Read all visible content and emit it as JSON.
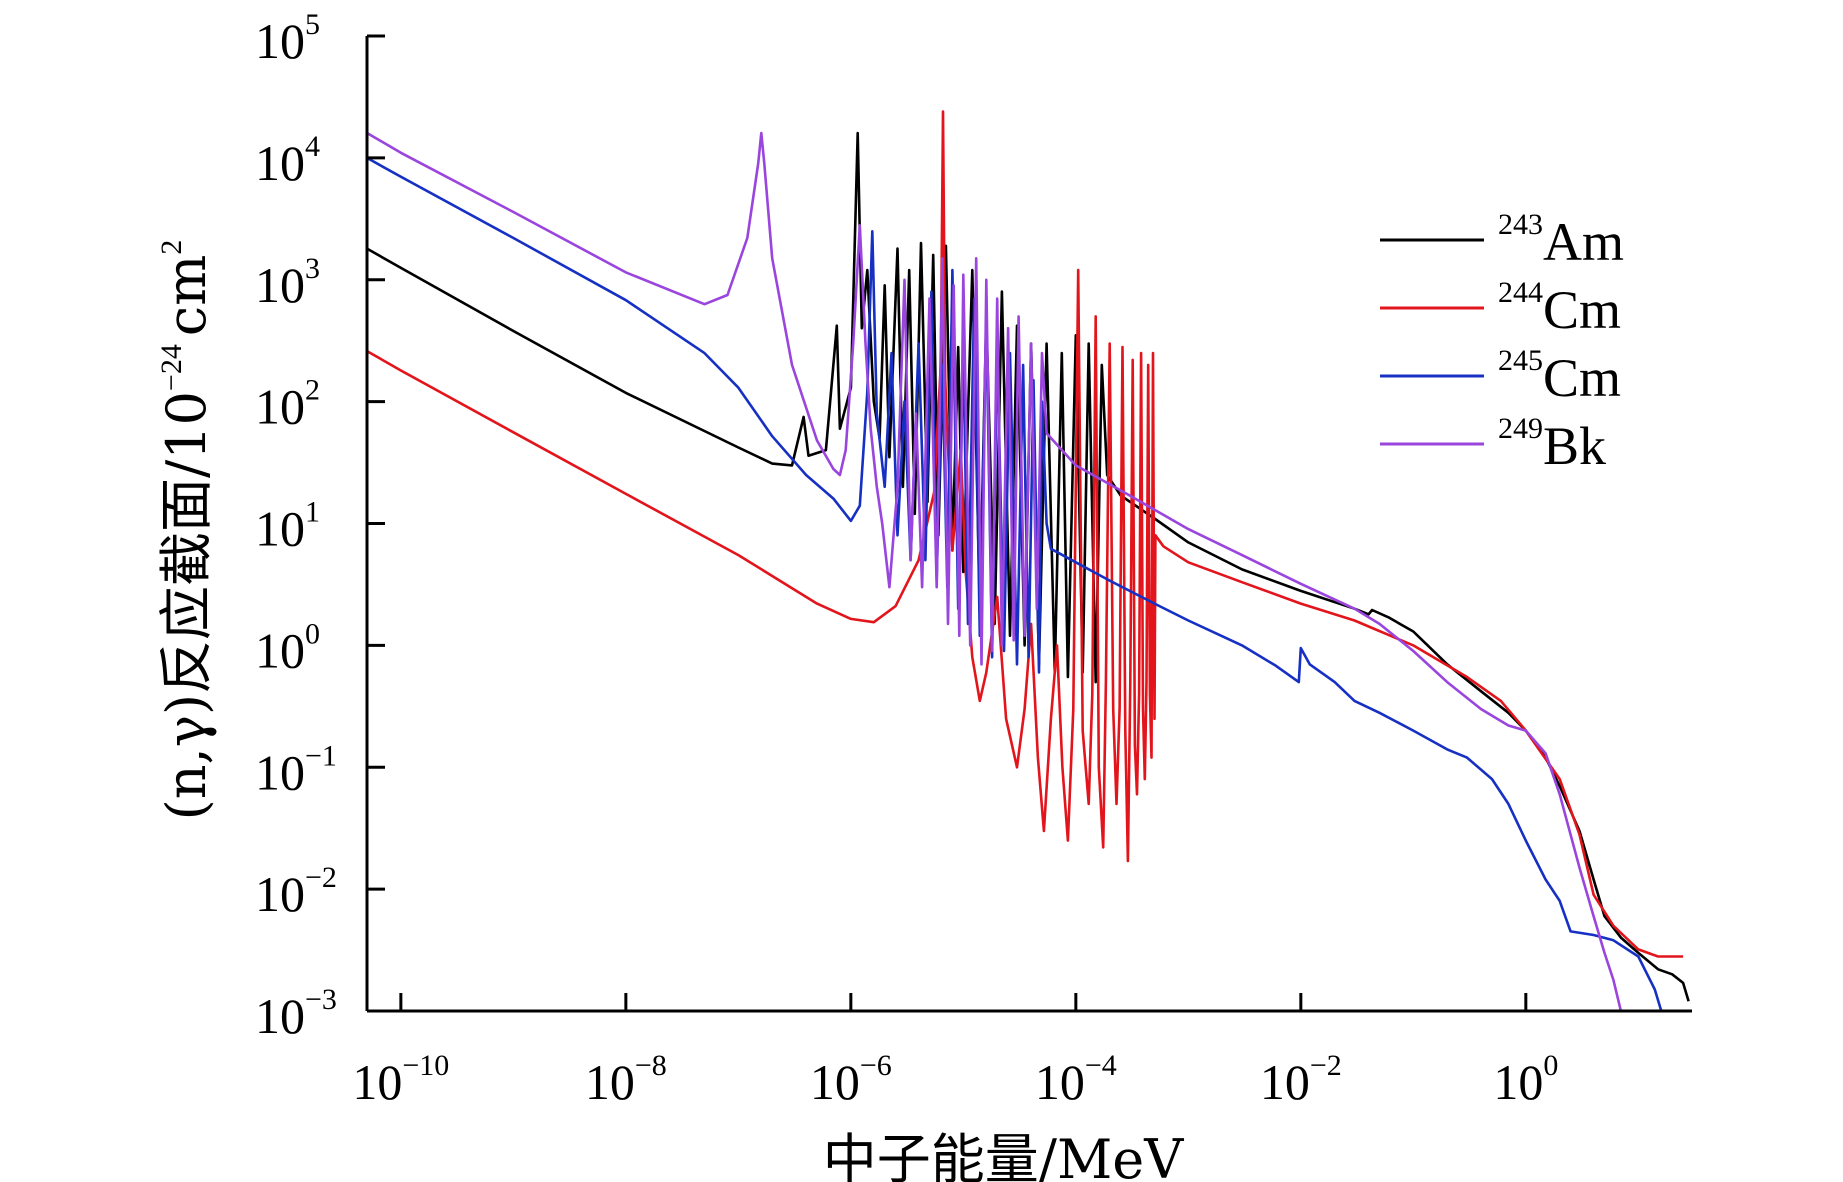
{
  "chart_data": {
    "type": "line",
    "xscale": "log",
    "yscale": "log",
    "xlabel": "中子能量/MeV",
    "ylabel": "(n,γ)反应截面/10",
    "ylabel_exp": "−24",
    "ylabel_unit": "cm",
    "ylabel_unit_exp": "2",
    "xlim": [
      5e-11,
      30
    ],
    "ylim": [
      0.001,
      100000
    ],
    "x_ticks": [
      {
        "base": "10",
        "exp": "−10",
        "value": 1e-10
      },
      {
        "base": "10",
        "exp": "−8",
        "value": 1e-08
      },
      {
        "base": "10",
        "exp": "−6",
        "value": 1e-06
      },
      {
        "base": "10",
        "exp": "−4",
        "value": 0.0001
      },
      {
        "base": "10",
        "exp": "−2",
        "value": 0.01
      },
      {
        "base": "10",
        "exp": "0",
        "value": 1
      }
    ],
    "y_ticks": [
      {
        "base": "10",
        "exp": "5",
        "value": 100000
      },
      {
        "base": "10",
        "exp": "4",
        "value": 10000
      },
      {
        "base": "10",
        "exp": "3",
        "value": 1000
      },
      {
        "base": "10",
        "exp": "2",
        "value": 100
      },
      {
        "base": "10",
        "exp": "1",
        "value": 10
      },
      {
        "base": "10",
        "exp": "0",
        "value": 1
      },
      {
        "base": "10",
        "exp": "−1",
        "value": 0.1
      },
      {
        "base": "10",
        "exp": "−2",
        "value": 0.01
      },
      {
        "base": "10",
        "exp": "−3",
        "value": 0.001
      }
    ],
    "legend_position": "right",
    "series": [
      {
        "name": "Am",
        "mass": "243",
        "color": "#000000",
        "points": [
          [
            5e-11,
            1800
          ],
          [
            1e-10,
            1250
          ],
          [
            1e-09,
            380
          ],
          [
            1e-08,
            118
          ],
          [
            1e-07,
            42
          ],
          [
            2e-07,
            31
          ],
          [
            3e-07,
            30
          ],
          [
            3.8e-07,
            75
          ],
          [
            4.2e-07,
            36
          ],
          [
            6e-07,
            40
          ],
          [
            7.5e-07,
            420
          ],
          [
            8e-07,
            60
          ],
          [
            1e-06,
            130
          ],
          [
            1.15e-06,
            16000
          ],
          [
            1.25e-06,
            400
          ],
          [
            1.4e-06,
            1200
          ],
          [
            1.6e-06,
            100
          ],
          [
            1.8e-06,
            50
          ],
          [
            2e-06,
            900
          ],
          [
            2.2e-06,
            35
          ],
          [
            2.6e-06,
            1800
          ],
          [
            2.9e-06,
            20
          ],
          [
            3.3e-06,
            1200
          ],
          [
            3.7e-06,
            12
          ],
          [
            4.2e-06,
            2000
          ],
          [
            4.8e-06,
            15
          ],
          [
            5.4e-06,
            1600
          ],
          [
            6e-06,
            8
          ],
          [
            7e-06,
            1900
          ],
          [
            8e-06,
            6
          ],
          [
            9e-06,
            280
          ],
          [
            1e-05,
            4
          ],
          [
            1.2e-05,
            1200
          ],
          [
            1.4e-05,
            2
          ],
          [
            1.6e-05,
            500
          ],
          [
            1.9e-05,
            1.5
          ],
          [
            2.2e-05,
            800
          ],
          [
            2.6e-05,
            1.2
          ],
          [
            3e-05,
            420
          ],
          [
            3.5e-05,
            1
          ],
          [
            4e-05,
            300
          ],
          [
            4.7e-05,
            0.7
          ],
          [
            5.5e-05,
            300
          ],
          [
            6.5e-05,
            0.6
          ],
          [
            7.5e-05,
            250
          ],
          [
            8.5e-05,
            0.55
          ],
          [
            0.0001,
            350
          ],
          [
            0.000115,
            0.6
          ],
          [
            0.00013,
            300
          ],
          [
            0.00015,
            0.5
          ],
          [
            0.00017,
            200
          ],
          [
            0.00019,
            25
          ],
          [
            0.00025,
            17
          ],
          [
            0.0005,
            11
          ],
          [
            0.001,
            7
          ],
          [
            0.003,
            4.2
          ],
          [
            0.01,
            2.8
          ],
          [
            0.03,
            2
          ],
          [
            0.04,
            1.8
          ],
          [
            0.043,
            1.95
          ],
          [
            0.06,
            1.7
          ],
          [
            0.1,
            1.3
          ],
          [
            0.2,
            0.7
          ],
          [
            0.4,
            0.42
          ],
          [
            0.7,
            0.28
          ],
          [
            1,
            0.2
          ],
          [
            1.5,
            0.12
          ],
          [
            2,
            0.07
          ],
          [
            3,
            0.03
          ],
          [
            4,
            0.012
          ],
          [
            5,
            0.006
          ],
          [
            7,
            0.004
          ],
          [
            10,
            0.003
          ],
          [
            15,
            0.0022
          ],
          [
            20,
            0.002
          ],
          [
            25,
            0.0017
          ],
          [
            28,
            0.0012
          ]
        ]
      },
      {
        "name": "Cm",
        "mass": "244",
        "color": "#e2151c",
        "points": [
          [
            5e-11,
            260
          ],
          [
            1e-10,
            180
          ],
          [
            1e-09,
            56
          ],
          [
            1e-08,
            17.5
          ],
          [
            1e-07,
            5.5
          ],
          [
            5e-07,
            2.2
          ],
          [
            1e-06,
            1.65
          ],
          [
            1.6e-06,
            1.55
          ],
          [
            2.5e-06,
            2.1
          ],
          [
            4e-06,
            5
          ],
          [
            5.5e-06,
            18
          ],
          [
            6.3e-06,
            200
          ],
          [
            6.6e-06,
            24000
          ],
          [
            6.9e-06,
            150
          ],
          [
            8e-06,
            6
          ],
          [
            9.5e-06,
            40
          ],
          [
            1.05e-05,
            4
          ],
          [
            1.2e-05,
            0.8
          ],
          [
            1.4e-05,
            0.35
          ],
          [
            1.6e-05,
            0.6
          ],
          [
            2e-05,
            2.5
          ],
          [
            2.4e-05,
            0.25
          ],
          [
            3e-05,
            0.1
          ],
          [
            3.5e-05,
            0.3
          ],
          [
            4e-05,
            1.5
          ],
          [
            4.6e-05,
            0.12
          ],
          [
            5.2e-05,
            0.03
          ],
          [
            6e-05,
            0.25
          ],
          [
            6.8e-05,
            1
          ],
          [
            7.6e-05,
            0.1
          ],
          [
            8.5e-05,
            0.025
          ],
          [
            9.5e-05,
            0.3
          ],
          [
            0.000105,
            1200
          ],
          [
            0.000115,
            0.2
          ],
          [
            0.00013,
            0.05
          ],
          [
            0.00014,
            0.4
          ],
          [
            0.00015,
            500
          ],
          [
            0.00016,
            0.1
          ],
          [
            0.000175,
            0.022
          ],
          [
            0.000185,
            0.5
          ],
          [
            0.0002,
            300
          ],
          [
            0.000215,
            0.3
          ],
          [
            0.00023,
            0.05
          ],
          [
            0.000245,
            0.3
          ],
          [
            0.00026,
            280
          ],
          [
            0.000275,
            0.2
          ],
          [
            0.00029,
            0.017
          ],
          [
            0.000305,
            0.5
          ],
          [
            0.00032,
            220
          ],
          [
            0.000335,
            0.15
          ],
          [
            0.00035,
            0.06
          ],
          [
            0.000365,
            0.4
          ],
          [
            0.00038,
            250
          ],
          [
            0.000395,
            0.3
          ],
          [
            0.00041,
            0.08
          ],
          [
            0.000425,
            0.5
          ],
          [
            0.00044,
            200
          ],
          [
            0.000455,
            0.4
          ],
          [
            0.00047,
            0.12
          ],
          [
            0.000485,
            250
          ],
          [
            0.0005,
            0.25
          ],
          [
            0.00051,
            8
          ],
          [
            0.0006,
            6.5
          ],
          [
            0.001,
            4.8
          ],
          [
            0.003,
            3.3
          ],
          [
            0.01,
            2.2
          ],
          [
            0.03,
            1.6
          ],
          [
            0.1,
            1
          ],
          [
            0.3,
            0.55
          ],
          [
            0.6,
            0.35
          ],
          [
            1,
            0.2
          ],
          [
            2,
            0.08
          ],
          [
            3,
            0.028
          ],
          [
            4,
            0.009
          ],
          [
            6,
            0.005
          ],
          [
            10,
            0.0032
          ],
          [
            15,
            0.0028
          ],
          [
            25,
            0.0028
          ]
        ]
      },
      {
        "name": "Cm",
        "mass": "245",
        "color": "#1730c4",
        "points": [
          [
            5e-11,
            10000
          ],
          [
            1e-10,
            7000
          ],
          [
            1e-09,
            2200
          ],
          [
            1e-08,
            680
          ],
          [
            5e-08,
            250
          ],
          [
            1e-07,
            130
          ],
          [
            2e-07,
            52
          ],
          [
            4e-07,
            25
          ],
          [
            7e-07,
            16
          ],
          [
            1e-06,
            10.5
          ],
          [
            1.2e-06,
            14
          ],
          [
            1.4e-06,
            120
          ],
          [
            1.55e-06,
            2500
          ],
          [
            1.7e-06,
            80
          ],
          [
            2e-06,
            20
          ],
          [
            2.3e-06,
            250
          ],
          [
            2.6e-06,
            8
          ],
          [
            3e-06,
            100
          ],
          [
            3.4e-06,
            5
          ],
          [
            4e-06,
            300
          ],
          [
            4.6e-06,
            5
          ],
          [
            5.2e-06,
            800
          ],
          [
            5.8e-06,
            3.5
          ],
          [
            6.5e-06,
            200
          ],
          [
            7.2e-06,
            3
          ],
          [
            8e-06,
            1200
          ],
          [
            9e-06,
            2
          ],
          [
            1e-05,
            300
          ],
          [
            1.1e-05,
            1.5
          ],
          [
            1.25e-05,
            700
          ],
          [
            1.4e-05,
            1.2
          ],
          [
            1.6e-05,
            500
          ],
          [
            1.8e-05,
            0.8
          ],
          [
            2e-05,
            300
          ],
          [
            2.3e-05,
            0.9
          ],
          [
            2.6e-05,
            250
          ],
          [
            3e-05,
            0.7
          ],
          [
            3.4e-05,
            200
          ],
          [
            3.8e-05,
            0.8
          ],
          [
            4.2e-05,
            150
          ],
          [
            4.7e-05,
            0.6
          ],
          [
            5e-05,
            100
          ],
          [
            5.5e-05,
            10
          ],
          [
            6e-05,
            6.2
          ],
          [
            0.0001,
            4.8
          ],
          [
            0.0002,
            3.4
          ],
          [
            0.0005,
            2.2
          ],
          [
            0.001,
            1.6
          ],
          [
            0.003,
            1
          ],
          [
            0.006,
            0.68
          ],
          [
            0.0096,
            0.5
          ],
          [
            0.01,
            0.95
          ],
          [
            0.012,
            0.7
          ],
          [
            0.02,
            0.5
          ],
          [
            0.03,
            0.35
          ],
          [
            0.05,
            0.28
          ],
          [
            0.1,
            0.2
          ],
          [
            0.2,
            0.14
          ],
          [
            0.3,
            0.12
          ],
          [
            0.5,
            0.08
          ],
          [
            0.7,
            0.05
          ],
          [
            1,
            0.025
          ],
          [
            1.5,
            0.012
          ],
          [
            2,
            0.008
          ],
          [
            2.5,
            0.0045
          ],
          [
            4,
            0.0042
          ],
          [
            6,
            0.0038
          ],
          [
            10,
            0.0028
          ],
          [
            14,
            0.0015
          ],
          [
            16,
            0.001
          ]
        ]
      },
      {
        "name": "Bk",
        "mass": "249",
        "color": "#9a45dd",
        "points": [
          [
            5e-11,
            16000
          ],
          [
            1e-10,
            11000
          ],
          [
            1e-09,
            3600
          ],
          [
            1e-08,
            1150
          ],
          [
            5e-08,
            630
          ],
          [
            8e-08,
            750
          ],
          [
            1.2e-07,
            2200
          ],
          [
            1.5e-07,
            9000
          ],
          [
            1.6e-07,
            16000
          ],
          [
            1.7e-07,
            9000
          ],
          [
            2e-07,
            1500
          ],
          [
            3e-07,
            200
          ],
          [
            5e-07,
            48
          ],
          [
            7e-07,
            28
          ],
          [
            8e-07,
            25
          ],
          [
            9e-07,
            40
          ],
          [
            1.05e-06,
            300
          ],
          [
            1.2e-06,
            2800
          ],
          [
            1.35e-06,
            300
          ],
          [
            1.5e-06,
            60
          ],
          [
            1.7e-06,
            20
          ],
          [
            1.9e-06,
            10
          ],
          [
            2.2e-06,
            3
          ],
          [
            2.6e-06,
            20
          ],
          [
            3e-06,
            1000
          ],
          [
            3.4e-06,
            5
          ],
          [
            3.8e-06,
            80
          ],
          [
            4.3e-06,
            3
          ],
          [
            5e-06,
            700
          ],
          [
            5.8e-06,
            3
          ],
          [
            6.5e-06,
            1500
          ],
          [
            7.3e-06,
            1.5
          ],
          [
            8.2e-06,
            900
          ],
          [
            9.2e-06,
            1.2
          ],
          [
            1e-05,
            1100
          ],
          [
            1.15e-05,
            1
          ],
          [
            1.3e-05,
            1500
          ],
          [
            1.45e-05,
            0.7
          ],
          [
            1.6e-05,
            1000
          ],
          [
            1.8e-05,
            0.9
          ],
          [
            2e-05,
            700
          ],
          [
            2.2e-05,
            1
          ],
          [
            2.5e-05,
            400
          ],
          [
            2.8e-05,
            1.1
          ],
          [
            3.1e-05,
            500
          ],
          [
            3.5e-05,
            1.2
          ],
          [
            4e-05,
            300
          ],
          [
            4.5e-05,
            2
          ],
          [
            5e-05,
            250
          ],
          [
            5.5e-05,
            55
          ],
          [
            0.0001,
            30
          ],
          [
            0.0003,
            17
          ],
          [
            0.001,
            9
          ],
          [
            0.003,
            5.5
          ],
          [
            0.01,
            3.2
          ],
          [
            0.03,
            2
          ],
          [
            0.05,
            1.5
          ],
          [
            0.1,
            0.9
          ],
          [
            0.2,
            0.5
          ],
          [
            0.4,
            0.3
          ],
          [
            0.7,
            0.22
          ],
          [
            1,
            0.2
          ],
          [
            1.5,
            0.13
          ],
          [
            2,
            0.06
          ],
          [
            3,
            0.015
          ],
          [
            4,
            0.006
          ],
          [
            5,
            0.003
          ],
          [
            6,
            0.0018
          ],
          [
            7,
            0.001
          ]
        ]
      }
    ]
  }
}
